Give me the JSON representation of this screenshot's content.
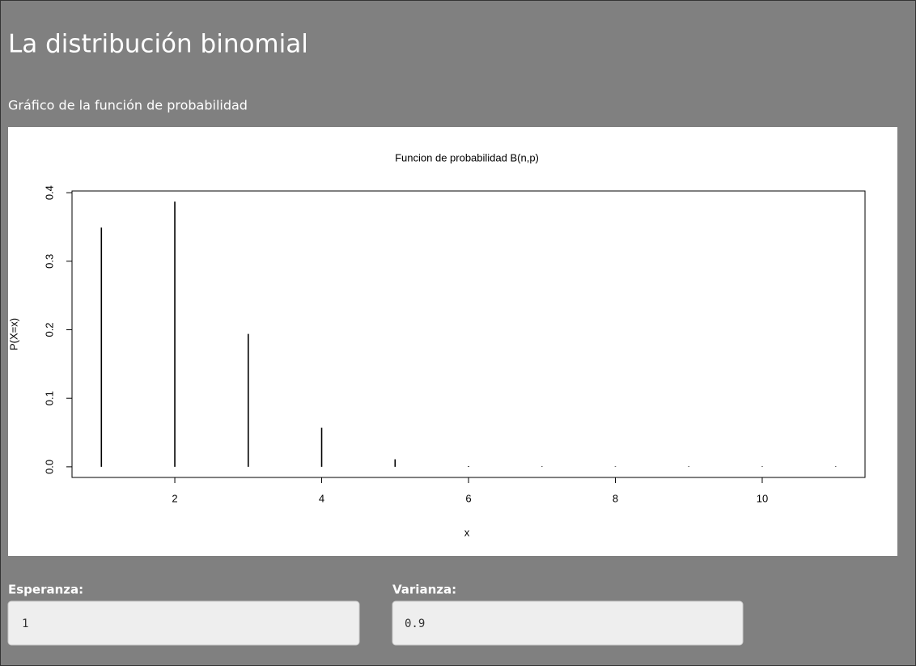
{
  "header": {
    "title": "La distribución binomial",
    "subtitle": "Gráfico de la función de probabilidad"
  },
  "chart_data": {
    "type": "bar",
    "title": "Funcion de probabilidad B(n,p)",
    "x_label": "x",
    "y_label": "P(X=x)",
    "x": [
      1,
      2,
      3,
      4,
      5,
      6,
      7,
      8,
      9,
      10,
      11
    ],
    "values": [
      0.349,
      0.387,
      0.194,
      0.057,
      0.011,
      0.001,
      0,
      0,
      0,
      0,
      0
    ],
    "color": "#000000",
    "xlim": [
      0.6,
      11.4
    ],
    "xticks": [
      2,
      4,
      6,
      8,
      10
    ],
    "ylim": [
      -0.0155,
      0.4025
    ],
    "yticks": [
      {
        "value": 0,
        "label": "0.0"
      },
      0.1,
      0.2,
      0.3,
      0.4
    ]
  },
  "outputs": [
    {
      "label": "Esperanza:",
      "value": 1
    },
    {
      "label": "Varianza:",
      "value": 0.9
    }
  ]
}
